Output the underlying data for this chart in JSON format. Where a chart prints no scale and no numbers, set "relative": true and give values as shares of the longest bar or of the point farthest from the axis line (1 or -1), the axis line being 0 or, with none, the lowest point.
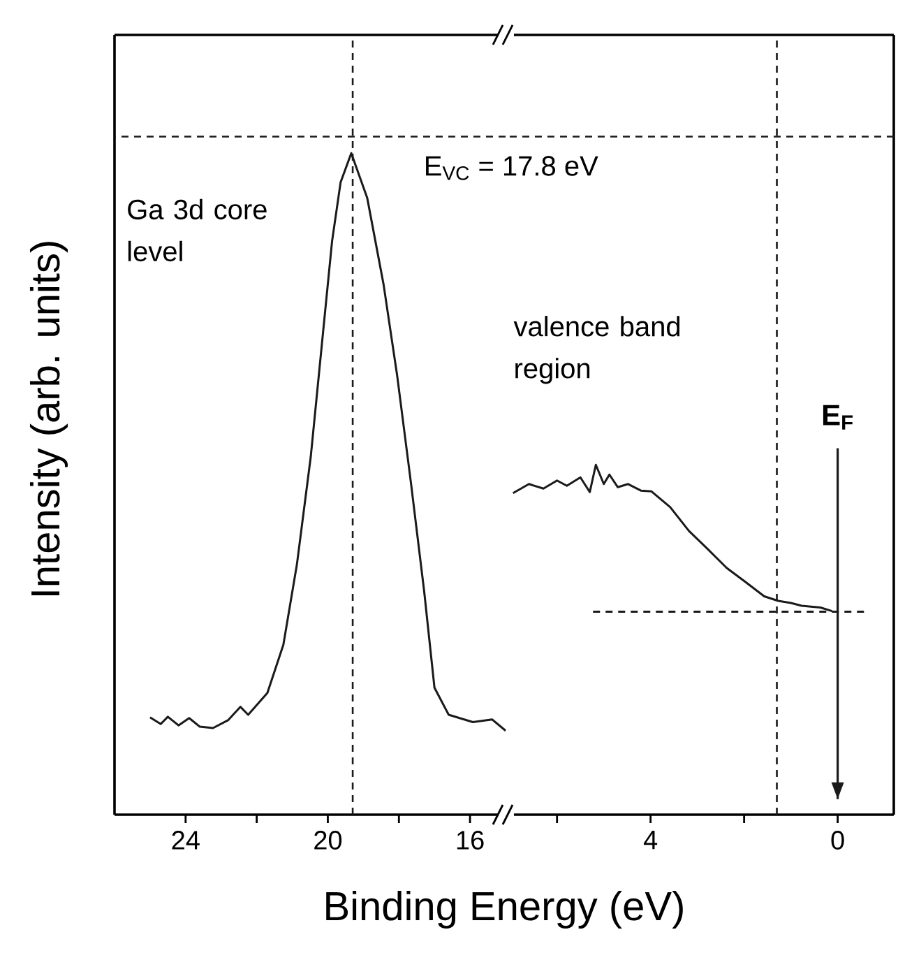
{
  "chart_data": [
    {
      "type": "line",
      "relative": true,
      "xlabel": "Binding Energy (eV)",
      "ylabel": "Intensity (arb. units)",
      "xlim": [
        26,
        15
      ],
      "xticks": [
        24,
        {
          "value": 22,
          "label": null
        },
        20,
        {
          "value": 18,
          "label": null
        },
        16
      ],
      "series": [
        {
          "color": "#1a1a1a",
          "line_style": "solid",
          "x": [
            25.0,
            24.7,
            24.5,
            24.2,
            23.9,
            23.6,
            23.23,
            22.8,
            22.46,
            22.24,
            21.7,
            21.25,
            20.87,
            20.48,
            20.18,
            19.88,
            19.64,
            19.34,
            18.89,
            18.43,
            18.05,
            17.66,
            17.29,
            17.0,
            16.6,
            15.92,
            15.38,
            15.0
          ],
          "values": [
            0.147,
            0.137,
            0.148,
            0.135,
            0.146,
            0.133,
            0.131,
            0.143,
            0.163,
            0.151,
            0.184,
            0.257,
            0.378,
            0.541,
            0.704,
            0.867,
            0.956,
            1,
            0.932,
            0.801,
            0.664,
            0.501,
            0.338,
            0.192,
            0.151,
            0.14,
            0.144,
            0.127
          ]
        }
      ],
      "ref_lines": [
        {
          "axis": "x",
          "value": 19.3,
          "line_style": "dashed",
          "color": "#1a1a1a"
        },
        {
          "axis": "y",
          "value": 1.025,
          "line_style": "dashed",
          "color": "#1a1a1a"
        }
      ],
      "annotations": [
        "Ga 3d core level",
        "E$_{VC}$ = 17.8 eV"
      ]
    },
    {
      "type": "line",
      "relative": true,
      "xlim": [
        7.1,
        -1.2
      ],
      "xticks": [
        {
          "value": 6,
          "label": null
        },
        4,
        {
          "value": 2,
          "label": null
        },
        0
      ],
      "series": [
        {
          "color": "#1a1a1a",
          "line_style": "solid",
          "x": [
            6.94,
            6.6,
            6.29,
            6.0,
            5.79,
            5.5,
            5.3,
            5.17,
            5.0,
            4.88,
            4.7,
            4.48,
            4.2,
            3.98,
            3.58,
            3.18,
            2.77,
            2.37,
            1.97,
            1.57,
            1.27,
            1.0,
            0.77,
            0.37,
            0.12
          ],
          "values": [
            0.919,
            0.945,
            0.932,
            0.955,
            0.94,
            0.964,
            0.922,
            1,
            0.945,
            0.972,
            0.936,
            0.945,
            0.926,
            0.924,
            0.879,
            0.811,
            0.758,
            0.705,
            0.665,
            0.624,
            0.611,
            0.605,
            0.597,
            0.592,
            0.582
          ]
        },
        {
          "type": "line",
          "color": "#1a1a1a",
          "line_style": "dashed",
          "x": [
            5.23,
            -0.63
          ],
          "values": [
            0.58,
            0.58
          ]
        }
      ],
      "ref_lines": [
        {
          "axis": "x",
          "value": 1.3,
          "line_style": "dashed",
          "color": "#1a1a1a"
        },
        {
          "axis": "y",
          "value": 1.938,
          "line_style": "dashed",
          "color": "#1a1a1a"
        },
        {
          "axis": "x",
          "value": 0,
          "line_style": "solid",
          "color": "#1a1a1a",
          "label": "E$_{F}$"
        }
      ],
      "annotations": [
        "valence band region"
      ]
    }
  ]
}
